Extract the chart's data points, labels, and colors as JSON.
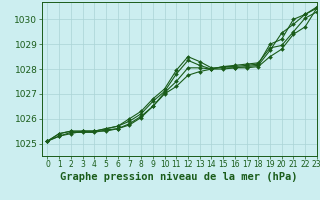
{
  "background_color": "#cceef0",
  "grid_color": "#aad4d6",
  "line_color": "#1a5c1a",
  "xlabel": "Graphe pression niveau de la mer (hPa)",
  "xlabel_fontsize": 7.5,
  "xlim": [
    -0.5,
    23
  ],
  "ylim": [
    1024.5,
    1030.7
  ],
  "yticks": [
    1025,
    1026,
    1027,
    1028,
    1029,
    1030
  ],
  "ytick_fontsize": 6.5,
  "xtick_fontsize": 5.5,
  "xticks": [
    0,
    1,
    2,
    3,
    4,
    5,
    6,
    7,
    8,
    9,
    10,
    11,
    12,
    13,
    14,
    15,
    16,
    17,
    18,
    19,
    20,
    21,
    22,
    23
  ],
  "series": [
    [
      1025.1,
      1025.3,
      1025.45,
      1025.45,
      1025.45,
      1025.55,
      1025.6,
      1025.75,
      1026.05,
      1026.5,
      1027.05,
      1027.5,
      1028.05,
      1028.05,
      1028.0,
      1028.1,
      1028.1,
      1028.15,
      1028.2,
      1029.0,
      1029.2,
      1030.0,
      1030.2,
      1030.45
    ],
    [
      1025.1,
      1025.4,
      1025.5,
      1025.5,
      1025.5,
      1025.6,
      1025.7,
      1026.0,
      1026.3,
      1026.8,
      1027.2,
      1027.95,
      1028.5,
      1028.3,
      1028.05,
      1028.05,
      1028.05,
      1028.1,
      1028.15,
      1028.75,
      1029.45,
      1029.8,
      1030.2,
      1030.5
    ],
    [
      1025.1,
      1025.3,
      1025.4,
      1025.5,
      1025.5,
      1025.5,
      1025.6,
      1025.8,
      1026.1,
      1026.5,
      1027.0,
      1027.3,
      1027.75,
      1027.9,
      1028.0,
      1028.1,
      1028.15,
      1028.2,
      1028.25,
      1028.85,
      1028.95,
      1029.5,
      1030.05,
      1030.3
    ],
    [
      1025.1,
      1025.4,
      1025.5,
      1025.5,
      1025.5,
      1025.6,
      1025.7,
      1025.9,
      1026.2,
      1026.7,
      1027.1,
      1027.8,
      1028.35,
      1028.15,
      1028.0,
      1028.0,
      1028.05,
      1028.05,
      1028.1,
      1028.5,
      1028.8,
      1029.4,
      1029.7,
      1030.45
    ]
  ]
}
